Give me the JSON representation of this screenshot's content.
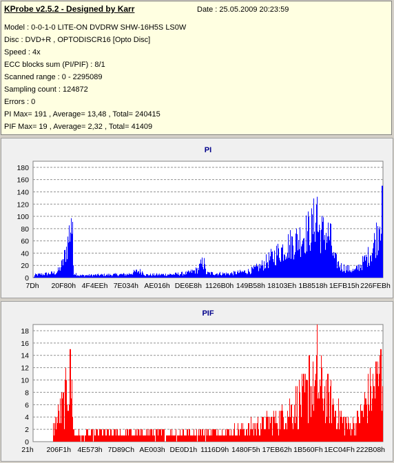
{
  "header": {
    "title": "KProbe v2.5.2 - Designed by Karr",
    "date": "Date : 25.05.2009 20:23:59"
  },
  "info_lines": [
    "Model : 0-0-1-0 LITE-ON DVDRW SHW-16H5S  LS0W",
    "Disc : DVD+R , OPTODISCR16 [Opto Disc]",
    "Speed : 4x",
    "ECC blocks sum (PI/PIF) : 8/1",
    "Scanned range : 0 - 2295089",
    "Sampling count : 124872",
    "Errors : 0",
    "PI Max= 191 , Average= 13,48 , Total= 240415",
    "PIF Max= 19 , Average= 2,32 , Total= 41409"
  ],
  "chart_data": [
    {
      "type": "area",
      "title": "PI",
      "color": "#0000ff",
      "ylim": [
        0,
        190
      ],
      "yticks": [
        0,
        20,
        40,
        60,
        80,
        100,
        120,
        140,
        160,
        180
      ],
      "xtick_labels": [
        "7Dh",
        "20F80h",
        "4F4EEh",
        "7E034h",
        "AE016h",
        "DE6E8h",
        "1126B0h",
        "149B58h",
        "18103Eh",
        "1B8518h",
        "1EFB15h",
        "226FEBh"
      ],
      "grid": true,
      "profile": [
        [
          0.0,
          0
        ],
        [
          0.005,
          5
        ],
        [
          0.04,
          7
        ],
        [
          0.065,
          9
        ],
        [
          0.075,
          15
        ],
        [
          0.085,
          28
        ],
        [
          0.092,
          45
        ],
        [
          0.098,
          60
        ],
        [
          0.104,
          85
        ],
        [
          0.108,
          97
        ],
        [
          0.112,
          80
        ],
        [
          0.115,
          10
        ],
        [
          0.13,
          4
        ],
        [
          0.2,
          5
        ],
        [
          0.27,
          6
        ],
        [
          0.3,
          12
        ],
        [
          0.315,
          10
        ],
        [
          0.32,
          5
        ],
        [
          0.4,
          6
        ],
        [
          0.44,
          8
        ],
        [
          0.47,
          14
        ],
        [
          0.485,
          28
        ],
        [
          0.49,
          20
        ],
        [
          0.495,
          8
        ],
        [
          0.56,
          7
        ],
        [
          0.62,
          12
        ],
        [
          0.65,
          20
        ],
        [
          0.68,
          35
        ],
        [
          0.72,
          55
        ],
        [
          0.76,
          70
        ],
        [
          0.78,
          80
        ],
        [
          0.8,
          90
        ],
        [
          0.81,
          120
        ],
        [
          0.815,
          85
        ],
        [
          0.83,
          80
        ],
        [
          0.85,
          75
        ],
        [
          0.86,
          35
        ],
        [
          0.88,
          20
        ],
        [
          0.92,
          12
        ],
        [
          0.94,
          25
        ],
        [
          0.955,
          35
        ],
        [
          0.97,
          50
        ],
        [
          0.985,
          80
        ],
        [
          0.992,
          110
        ],
        [
          1.0,
          140
        ]
      ],
      "peaks": [
        [
          0.108,
          97
        ],
        [
          0.812,
          132
        ],
        [
          0.999,
          150
        ],
        [
          0.489,
          32
        ]
      ]
    },
    {
      "type": "bar",
      "title": "PIF",
      "color": "#ff0000",
      "ylim": [
        0,
        19
      ],
      "yticks": [
        0,
        2,
        4,
        6,
        8,
        10,
        12,
        14,
        16,
        18
      ],
      "xtick_labels": [
        "21h",
        "206F1h",
        "4E573h",
        "7D89Ch",
        "AE003h",
        "DE0D1h",
        "1116D9h",
        "1480F5h",
        "17EB62h",
        "1B560Fh",
        "1EC04Fh",
        "222B08h"
      ],
      "grid": true,
      "profile": [
        [
          0.0,
          0
        ],
        [
          0.055,
          0
        ],
        [
          0.056,
          2
        ],
        [
          0.07,
          4
        ],
        [
          0.09,
          7
        ],
        [
          0.1,
          10
        ],
        [
          0.105,
          12
        ],
        [
          0.112,
          8
        ],
        [
          0.115,
          2
        ],
        [
          0.12,
          1
        ],
        [
          0.2,
          1.5
        ],
        [
          0.3,
          1.5
        ],
        [
          0.4,
          1.5
        ],
        [
          0.5,
          1.5
        ],
        [
          0.6,
          2
        ],
        [
          0.65,
          3
        ],
        [
          0.7,
          4
        ],
        [
          0.74,
          6
        ],
        [
          0.78,
          8
        ],
        [
          0.81,
          10
        ],
        [
          0.83,
          9
        ],
        [
          0.85,
          7
        ],
        [
          0.87,
          5
        ],
        [
          0.9,
          3
        ],
        [
          0.92,
          3
        ],
        [
          0.94,
          5
        ],
        [
          0.96,
          8
        ],
        [
          0.98,
          10
        ],
        [
          1.0,
          12
        ]
      ],
      "peaks": [
        [
          0.104,
          15
        ],
        [
          0.812,
          19
        ],
        [
          0.995,
          15
        ],
        [
          0.98,
          13
        ],
        [
          0.79,
          14
        ]
      ]
    }
  ]
}
